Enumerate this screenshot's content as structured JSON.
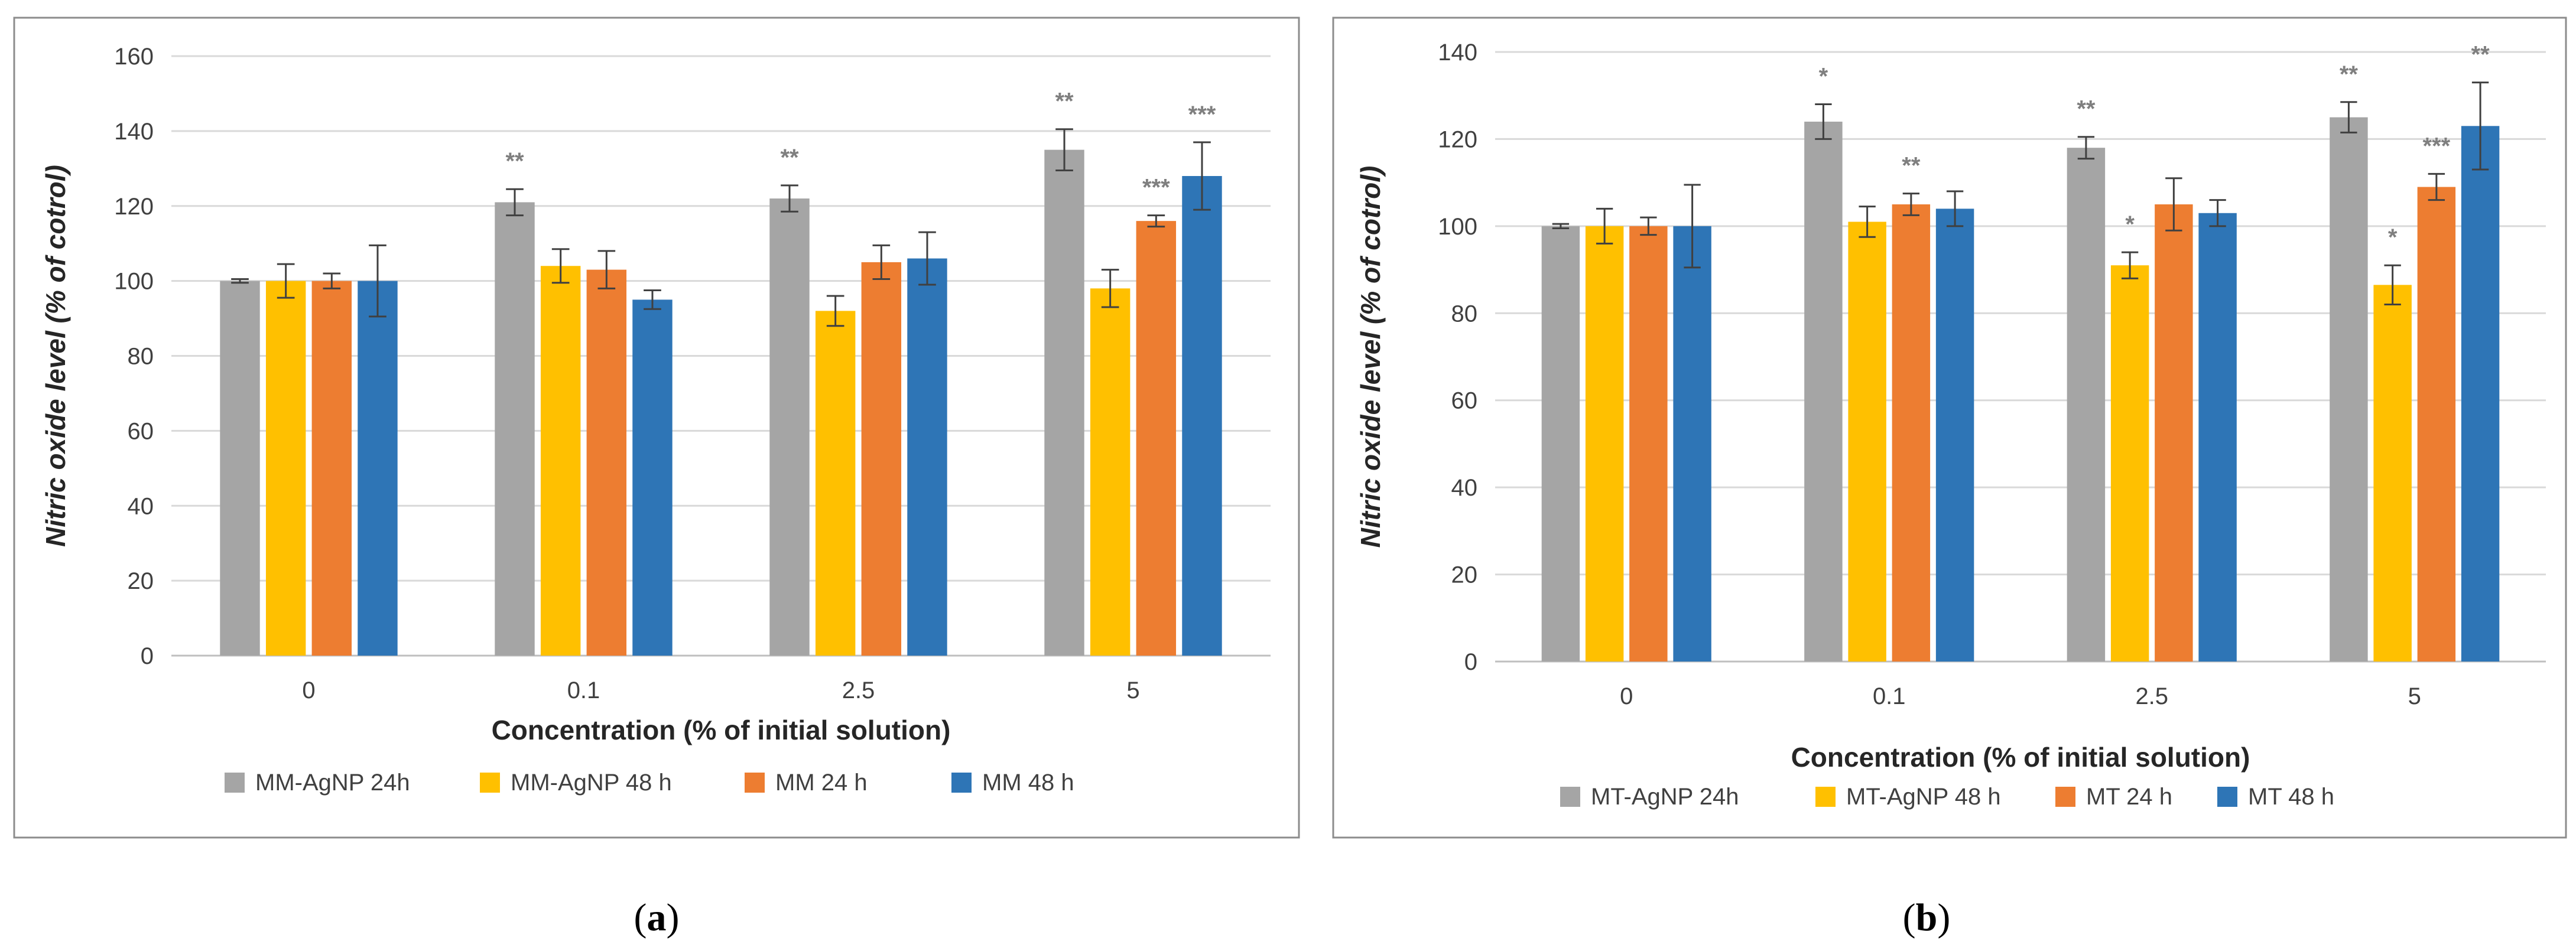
{
  "chart_data": [
    {
      "type": "bar",
      "caption_open": "(",
      "caption_letter": "a",
      "caption_close": ")",
      "xlabel": "Concentration (% of initial solution)",
      "ylabel": "Nitric oxide level (% of cotrol)",
      "ylim": [
        0,
        160
      ],
      "ytick_step": 20,
      "grid": true,
      "legend": "bottom",
      "categories": [
        "0",
        "0.1",
        "2.5",
        "5"
      ],
      "series": [
        {
          "name": "MM-AgNP 24h",
          "color": "#a5a5a5",
          "values": [
            100,
            121,
            122,
            135
          ],
          "errors": [
            0.5,
            3.5,
            3.5,
            5.5
          ],
          "sig": [
            "",
            "**",
            "**",
            "**"
          ]
        },
        {
          "name": "MM-AgNP 48 h",
          "color": "#ffc000",
          "values": [
            100,
            104,
            92,
            98
          ],
          "errors": [
            4.5,
            4.5,
            4,
            5
          ],
          "sig": [
            "",
            "",
            "",
            ""
          ]
        },
        {
          "name": "MM 24 h",
          "color": "#ed7d31",
          "values": [
            100,
            103,
            105,
            116
          ],
          "errors": [
            2,
            5,
            4.5,
            1.5
          ],
          "sig": [
            "",
            "",
            "",
            "***"
          ]
        },
        {
          "name": "MM 48 h",
          "color": "#2e75b6",
          "values": [
            100,
            95,
            106,
            128
          ],
          "errors": [
            9.5,
            2.5,
            7,
            9
          ],
          "sig": [
            "",
            "",
            "",
            "***"
          ]
        }
      ]
    },
    {
      "type": "bar",
      "caption_open": "(",
      "caption_letter": "b",
      "caption_close": ")",
      "xlabel": "Concentration (% of initial solution)",
      "ylabel": "Nitric oxide level (% of cotrol)",
      "ylim": [
        0,
        140
      ],
      "ytick_step": 20,
      "grid": true,
      "legend": "bottom",
      "categories": [
        "0",
        "0.1",
        "2.5",
        "5"
      ],
      "series": [
        {
          "name": "MT-AgNP 24h",
          "color": "#a5a5a5",
          "values": [
            100,
            124,
            118,
            125
          ],
          "errors": [
            0.5,
            4,
            2.5,
            3.5
          ],
          "sig": [
            "",
            "*",
            "**",
            "**"
          ]
        },
        {
          "name": "MT-AgNP 48 h",
          "color": "#ffc000",
          "values": [
            100,
            101,
            91,
            86.5
          ],
          "errors": [
            4,
            3.5,
            3,
            4.5
          ],
          "sig": [
            "",
            "",
            "*",
            "*"
          ]
        },
        {
          "name": "MT 24 h",
          "color": "#ed7d31",
          "values": [
            100,
            105,
            105,
            109
          ],
          "errors": [
            2,
            2.5,
            6,
            3
          ],
          "sig": [
            "",
            "**",
            "",
            "***"
          ]
        },
        {
          "name": "MT 48 h",
          "color": "#2e75b6",
          "values": [
            100,
            104,
            103,
            123
          ],
          "errors": [
            9.5,
            4,
            3,
            10
          ],
          "sig": [
            "",
            "",
            "",
            "**"
          ]
        }
      ]
    }
  ]
}
